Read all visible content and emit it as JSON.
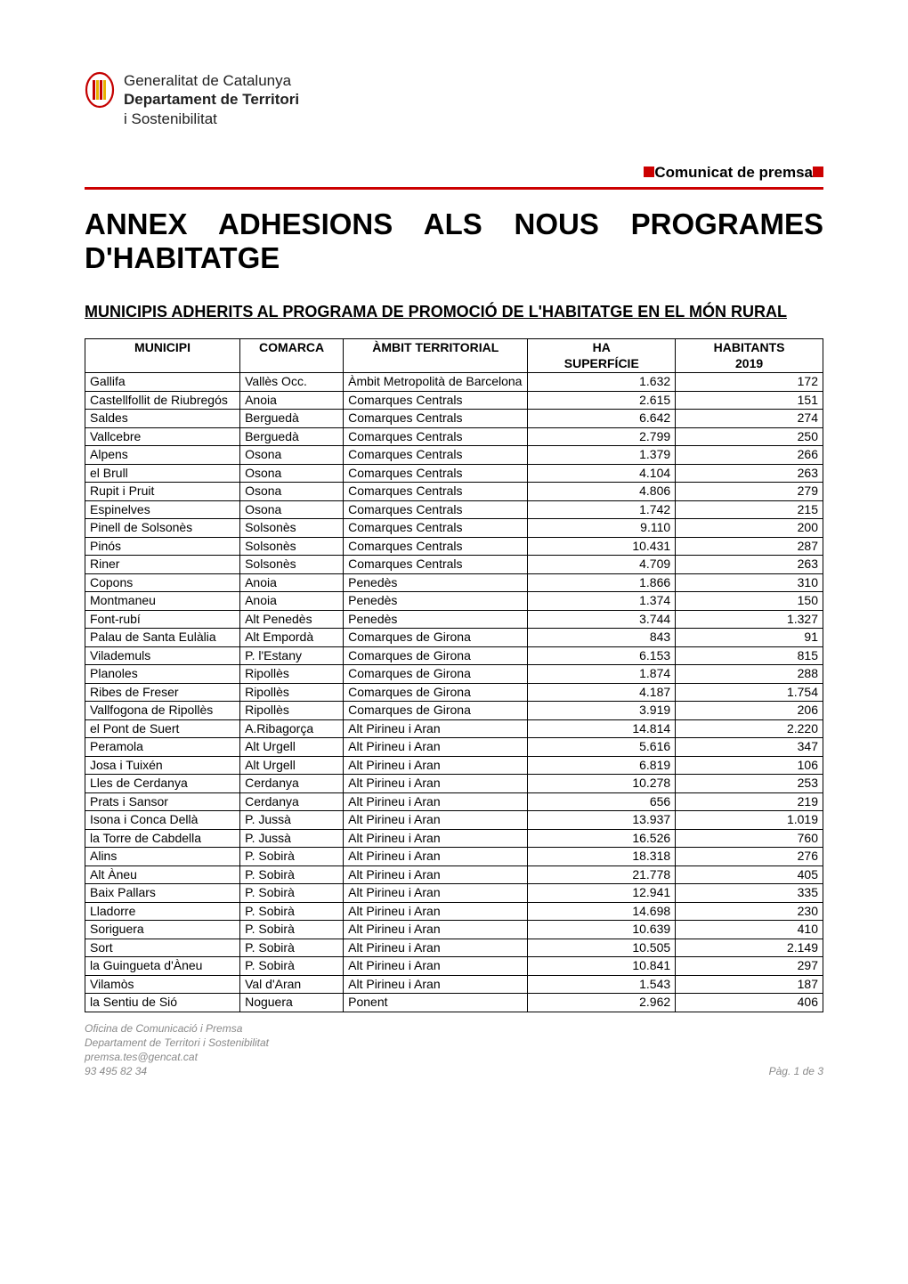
{
  "logo": {
    "line1": "Generalitat de Catalunya",
    "line2": "Departament de Territori",
    "line3": "i Sostenibilitat",
    "bar_colors": [
      "#c40000",
      "#e8b100",
      "#c40000",
      "#e8b100"
    ]
  },
  "press_label": "Comunicat de premsa",
  "title": "ANNEX ADHESIONS ALS NOUS PROGRAMES D'HABITATGE",
  "section_title": "MUNICIPIS ADHERITS AL PROGRAMA DE PROMOCIÓ DE L'HABITATGE EN EL MÓN RURAL",
  "columns": {
    "municipi": "MUNICIPI",
    "comarca": "COMARCA",
    "ambit": "ÀMBIT TERRITORIAL",
    "superficie_l1": "HA",
    "superficie_l2": "SUPERFÍCIE",
    "habitants_l1": "HABITANTS",
    "habitants_l2": "2019"
  },
  "rows": [
    {
      "municipi": "Gallifa",
      "comarca": "Vallès Occ.",
      "ambit": "Àmbit Metropolità de Barcelona",
      "sup": "1.632",
      "hab": "172"
    },
    {
      "municipi": "Castellfollit de Riubregós",
      "comarca": "Anoia",
      "ambit": "Comarques Centrals",
      "sup": "2.615",
      "hab": "151"
    },
    {
      "municipi": "Saldes",
      "comarca": "Berguedà",
      "ambit": "Comarques Centrals",
      "sup": "6.642",
      "hab": "274"
    },
    {
      "municipi": "Vallcebre",
      "comarca": "Berguedà",
      "ambit": "Comarques Centrals",
      "sup": "2.799",
      "hab": "250"
    },
    {
      "municipi": "Alpens",
      "comarca": "Osona",
      "ambit": "Comarques Centrals",
      "sup": "1.379",
      "hab": "266"
    },
    {
      "municipi": "el Brull",
      "comarca": "Osona",
      "ambit": "Comarques Centrals",
      "sup": "4.104",
      "hab": "263"
    },
    {
      "municipi": "Rupit i Pruit",
      "comarca": "Osona",
      "ambit": "Comarques Centrals",
      "sup": "4.806",
      "hab": "279"
    },
    {
      "municipi": "Espinelves",
      "comarca": "Osona",
      "ambit": "Comarques Centrals",
      "sup": "1.742",
      "hab": "215"
    },
    {
      "municipi": "Pinell de Solsonès",
      "comarca": "Solsonès",
      "ambit": "Comarques Centrals",
      "sup": "9.110",
      "hab": "200"
    },
    {
      "municipi": "Pinós",
      "comarca": "Solsonès",
      "ambit": "Comarques Centrals",
      "sup": "10.431",
      "hab": "287"
    },
    {
      "municipi": "Riner",
      "comarca": "Solsonès",
      "ambit": "Comarques Centrals",
      "sup": "4.709",
      "hab": "263"
    },
    {
      "municipi": "Copons",
      "comarca": "Anoia",
      "ambit": "Penedès",
      "sup": "1.866",
      "hab": "310"
    },
    {
      "municipi": "Montmaneu",
      "comarca": "Anoia",
      "ambit": "Penedès",
      "sup": "1.374",
      "hab": "150"
    },
    {
      "municipi": "Font-rubí",
      "comarca": "Alt Penedès",
      "ambit": "Penedès",
      "sup": "3.744",
      "hab": "1.327"
    },
    {
      "municipi": "Palau de Santa Eulàlia",
      "comarca": "Alt Empordà",
      "ambit": "Comarques de Girona",
      "sup": "843",
      "hab": "91"
    },
    {
      "municipi": "Vilademuls",
      "comarca": "P. l'Estany",
      "ambit": "Comarques de Girona",
      "sup": "6.153",
      "hab": "815"
    },
    {
      "municipi": "Planoles",
      "comarca": "Ripollès",
      "ambit": "Comarques de Girona",
      "sup": "1.874",
      "hab": "288"
    },
    {
      "municipi": "Ribes de Freser",
      "comarca": "Ripollès",
      "ambit": "Comarques de Girona",
      "sup": "4.187",
      "hab": "1.754"
    },
    {
      "municipi": "Vallfogona de Ripollès",
      "comarca": "Ripollès",
      "ambit": "Comarques de Girona",
      "sup": "3.919",
      "hab": "206"
    },
    {
      "municipi": "el Pont de Suert",
      "comarca": "A.Ribagorça",
      "ambit": "Alt Pirineu i Aran",
      "sup": "14.814",
      "hab": "2.220"
    },
    {
      "municipi": "Peramola",
      "comarca": "Alt Urgell",
      "ambit": "Alt Pirineu i Aran",
      "sup": "5.616",
      "hab": "347"
    },
    {
      "municipi": "Josa i Tuixén",
      "comarca": "Alt Urgell",
      "ambit": "Alt Pirineu i Aran",
      "sup": "6.819",
      "hab": "106"
    },
    {
      "municipi": "Lles de Cerdanya",
      "comarca": "Cerdanya",
      "ambit": "Alt Pirineu i Aran",
      "sup": "10.278",
      "hab": "253"
    },
    {
      "municipi": "Prats i Sansor",
      "comarca": "Cerdanya",
      "ambit": "Alt Pirineu i Aran",
      "sup": "656",
      "hab": "219"
    },
    {
      "municipi": "Isona i Conca Dellà",
      "comarca": "P. Jussà",
      "ambit": "Alt Pirineu i Aran",
      "sup": "13.937",
      "hab": "1.019"
    },
    {
      "municipi": "la Torre de Cabdella",
      "comarca": "P. Jussà",
      "ambit": "Alt Pirineu i Aran",
      "sup": "16.526",
      "hab": "760"
    },
    {
      "municipi": "Alins",
      "comarca": "P. Sobirà",
      "ambit": "Alt Pirineu i Aran",
      "sup": "18.318",
      "hab": "276"
    },
    {
      "municipi": "Alt Àneu",
      "comarca": "P. Sobirà",
      "ambit": "Alt Pirineu i Aran",
      "sup": "21.778",
      "hab": "405"
    },
    {
      "municipi": "Baix Pallars",
      "comarca": "P. Sobirà",
      "ambit": "Alt Pirineu i Aran",
      "sup": "12.941",
      "hab": "335"
    },
    {
      "municipi": "Lladorre",
      "comarca": "P. Sobirà",
      "ambit": "Alt Pirineu i Aran",
      "sup": "14.698",
      "hab": "230"
    },
    {
      "municipi": "Soriguera",
      "comarca": "P. Sobirà",
      "ambit": "Alt Pirineu i Aran",
      "sup": "10.639",
      "hab": "410"
    },
    {
      "municipi": "Sort",
      "comarca": "P. Sobirà",
      "ambit": "Alt Pirineu i Aran",
      "sup": "10.505",
      "hab": "2.149"
    },
    {
      "municipi": "la Guingueta d'Àneu",
      "comarca": "P. Sobirà",
      "ambit": "Alt Pirineu i Aran",
      "sup": "10.841",
      "hab": "297"
    },
    {
      "municipi": "Vilamòs",
      "comarca": "Val d'Aran",
      "ambit": "Alt Pirineu i Aran",
      "sup": "1.543",
      "hab": "187"
    },
    {
      "municipi": "la Sentiu de Sió",
      "comarca": "Noguera",
      "ambit": "Ponent",
      "sup": "2.962",
      "hab": "406"
    }
  ],
  "footer": {
    "l1": "Oficina de Comunicació i Premsa",
    "l2": "Departament de Territori i Sostenibilitat",
    "l3": "premsa.tes@gencat.cat",
    "l4": "93 495 82 34",
    "page": "Pàg. 1 de 3"
  },
  "styling": {
    "accent_red": "#c00000",
    "border_color": "#000000",
    "footer_color": "#8a8a8a",
    "body_font": "Arial",
    "body_size_pt": 11,
    "title_size_pt": 24,
    "section_size_pt": 14
  }
}
